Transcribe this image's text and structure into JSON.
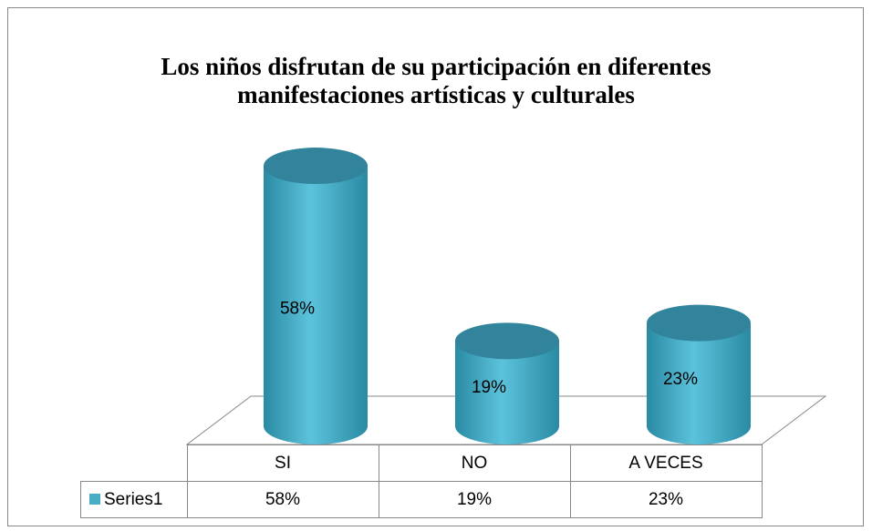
{
  "chart_data": {
    "type": "cylinder",
    "title": [
      "Los niños disfrutan de su participación en diferentes",
      "manifestaciones artísticas y culturales"
    ],
    "categories": [
      "SI",
      "NO",
      "A VECES"
    ],
    "series": [
      {
        "name": "Series1",
        "color": "#4bacc6",
        "top_color": "#31849b",
        "values": [
          58,
          19,
          23
        ],
        "value_labels": [
          "58%",
          "19%",
          "23%"
        ]
      }
    ],
    "data_table": true
  }
}
